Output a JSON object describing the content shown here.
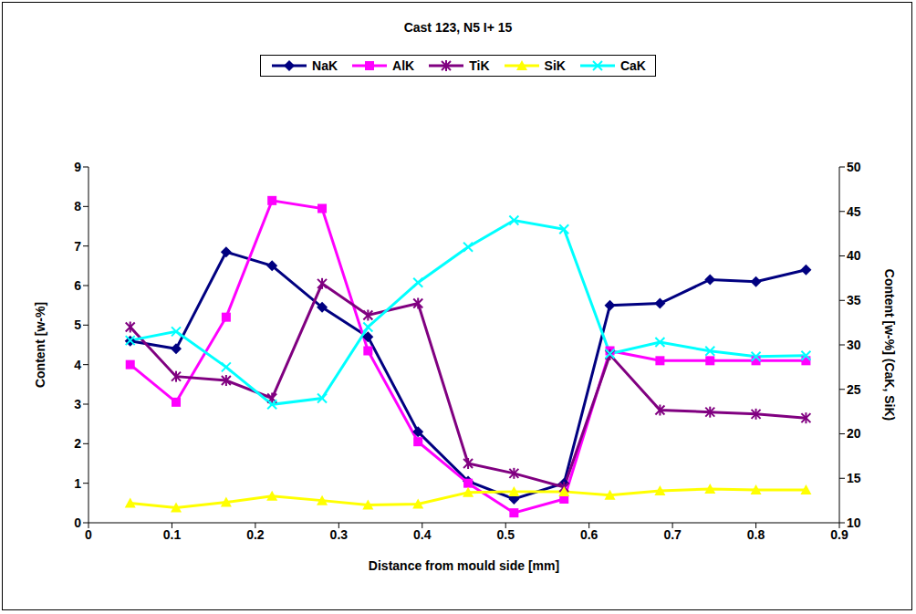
{
  "chart_data": {
    "type": "line",
    "title": "Cast 123, N5 I+ 15",
    "x_label": "Distance from mould side [mm]",
    "y_label": "Content [w-%]",
    "y2_label": "Content [w-%] (CaK, SiK)",
    "x": [
      0.05,
      0.105,
      0.165,
      0.22,
      0.28,
      0.335,
      0.395,
      0.455,
      0.51,
      0.57,
      0.625,
      0.685,
      0.745,
      0.8,
      0.86
    ],
    "series": [
      {
        "name": "NaK",
        "color": "#000080",
        "marker": "diamond",
        "values": [
          4.6,
          4.4,
          6.85,
          6.5,
          5.45,
          4.7,
          2.3,
          1.05,
          0.6,
          1.0,
          5.5,
          5.55,
          6.15,
          6.1,
          6.4
        ]
      },
      {
        "name": "AlK",
        "color": "#ff00ff",
        "marker": "square",
        "values": [
          4.0,
          3.05,
          5.2,
          8.15,
          7.95,
          4.35,
          2.05,
          1.0,
          0.25,
          0.6,
          4.35,
          4.1,
          4.1,
          4.1,
          4.1
        ]
      },
      {
        "name": "TiK",
        "color": "#800080",
        "marker": "asterisk",
        "values": [
          4.95,
          3.7,
          3.6,
          3.15,
          6.05,
          5.25,
          5.55,
          1.5,
          1.25,
          0.9,
          4.25,
          2.85,
          2.8,
          2.75,
          2.65
        ]
      },
      {
        "name": "SiK",
        "color": "#ffff00",
        "marker": "triangle",
        "axis": "y2",
        "values": [
          12.2,
          11.7,
          12.3,
          13.0,
          12.5,
          12.0,
          12.1,
          13.4,
          13.5,
          13.5,
          13.1,
          13.6,
          13.8,
          13.7,
          13.7
        ]
      },
      {
        "name": "CaK",
        "color": "#00ffff",
        "marker": "x",
        "axis": "y2",
        "values": [
          30.5,
          31.5,
          27.5,
          23.3,
          24.0,
          32.0,
          37.0,
          41.0,
          44.0,
          43.0,
          29.0,
          30.3,
          29.3,
          28.7,
          28.8
        ]
      }
    ],
    "xlim": [
      0,
      0.9
    ],
    "xticks": [
      0,
      0.1,
      0.2,
      0.3,
      0.4,
      0.5,
      0.6,
      0.7,
      0.8,
      0.9
    ],
    "ylim": [
      0,
      9
    ],
    "yticks": [
      0,
      1,
      2,
      3,
      4,
      5,
      6,
      7,
      8,
      9
    ],
    "y2lim": [
      10,
      50
    ],
    "y2ticks": [
      10,
      15,
      20,
      25,
      30,
      35,
      40,
      45,
      50
    ],
    "grid": false,
    "legend": "top"
  }
}
